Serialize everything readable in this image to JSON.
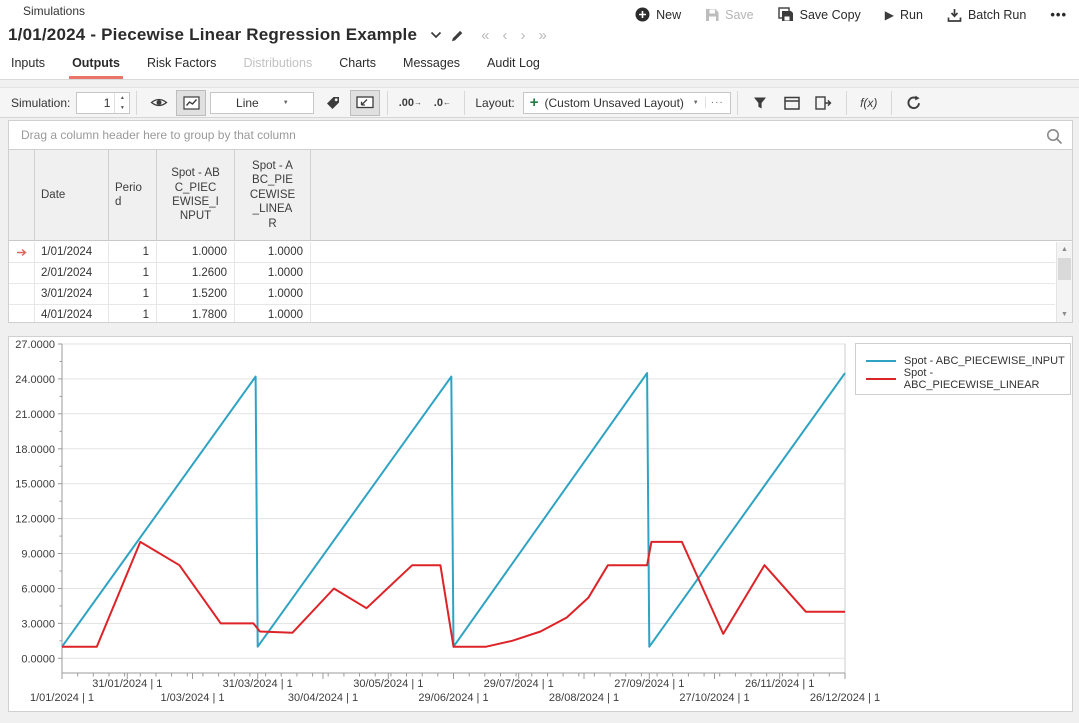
{
  "header": {
    "app_label": "Simulations",
    "title": "1/01/2024 - Piecewise Linear Regression Example",
    "actions": {
      "new": "New",
      "save": "Save",
      "save_copy": "Save Copy",
      "run": "Run",
      "batch_run": "Batch Run"
    },
    "tabs": [
      {
        "label": "Inputs",
        "state": "normal"
      },
      {
        "label": "Outputs",
        "state": "active"
      },
      {
        "label": "Risk Factors",
        "state": "normal"
      },
      {
        "label": "Distributions",
        "state": "disabled"
      },
      {
        "label": "Charts",
        "state": "normal"
      },
      {
        "label": "Messages",
        "state": "normal"
      },
      {
        "label": "Audit Log",
        "state": "normal"
      }
    ]
  },
  "icons": {
    "dropdown_caret": "▼",
    "nav_first": "«",
    "nav_prev": "‹",
    "nav_next": "›",
    "nav_last": "»",
    "overflow": "•••",
    "combo_more": "···",
    "spinner_up": "▲",
    "spinner_down": "▼",
    "run_glyph": "▶",
    "dec_add_arrow": "→",
    "dec_remove_arrow": "←",
    "scroll_up": "▲",
    "scroll_down": "▼"
  },
  "toolbar": {
    "simulation_label": "Simulation:",
    "simulation_value": "1",
    "chart_type_value": "Line",
    "dec_add": ".00",
    "dec_remove": ".0",
    "layout_label": "Layout:",
    "layout_plus": "+",
    "layout_value": "(Custom Unsaved Layout)",
    "fx_label": "f(x)"
  },
  "grid": {
    "group_hint": "Drag a column header here to group by that column",
    "columns": [
      "Date",
      "Period",
      "Spot - ABC_PIECEWISE_INPUT",
      "Spot - ABC_PIECEWISE_LINEAR"
    ],
    "rows": [
      [
        "1/01/2024",
        "1",
        "1.0000",
        "1.0000"
      ],
      [
        "2/01/2024",
        "1",
        "1.2600",
        "1.0000"
      ],
      [
        "3/01/2024",
        "1",
        "1.5200",
        "1.0000"
      ],
      [
        "4/01/2024",
        "1",
        "1.7800",
        "1.0000"
      ]
    ]
  },
  "colors": {
    "tab_accent": "#e8746a",
    "series_input": "#2fa3c3",
    "series_linear": "#dd2328",
    "green_plus": "#1f7a3f",
    "row_indicator": "#e0665c",
    "gridline": "#e3e3e3",
    "axis": "#9b9b9b"
  },
  "chart_data": {
    "type": "line",
    "title": "",
    "xlabel": "",
    "ylabel": "",
    "x_unit": "days since 1/01/2024, labels formatted as date | simulation",
    "y_range": [
      0,
      27
    ],
    "y_tick_step": 3,
    "grid": true,
    "legend_position": "top-right",
    "y_ticks": [
      "0.0000",
      "3.0000",
      "6.0000",
      "9.0000",
      "12.0000",
      "15.0000",
      "18.0000",
      "21.0000",
      "24.0000",
      "27.0000"
    ],
    "x_ticks": [
      {
        "day": 0,
        "label": "1/01/2024 | 1",
        "row": 2
      },
      {
        "day": 30,
        "label": "31/01/2024 | 1",
        "row": 1
      },
      {
        "day": 60,
        "label": "1/03/2024 | 1",
        "row": 2
      },
      {
        "day": 90,
        "label": "31/03/2024 | 1",
        "row": 1
      },
      {
        "day": 120,
        "label": "30/04/2024 | 1",
        "row": 2
      },
      {
        "day": 150,
        "label": "30/05/2024 | 1",
        "row": 1
      },
      {
        "day": 180,
        "label": "29/06/2024 | 1",
        "row": 2
      },
      {
        "day": 210,
        "label": "29/07/2024 | 1",
        "row": 1
      },
      {
        "day": 240,
        "label": "28/08/2024 | 1",
        "row": 2
      },
      {
        "day": 270,
        "label": "27/09/2024 | 1",
        "row": 1
      },
      {
        "day": 300,
        "label": "27/10/2024 | 1",
        "row": 2
      },
      {
        "day": 330,
        "label": "26/11/2024 | 1",
        "row": 1
      },
      {
        "day": 360,
        "label": "26/12/2024 | 1",
        "row": 2
      }
    ],
    "series": [
      {
        "name": "Spot - ABC_PIECEWISE_INPUT",
        "color": "#2fa3c3",
        "shape": "quarterly sawtooth, daily increment 0.26 starting at 1.0",
        "points": [
          [
            0,
            1
          ],
          [
            89,
            24.2
          ],
          [
            90,
            1
          ],
          [
            179,
            24.2
          ],
          [
            180,
            1
          ],
          [
            269,
            24.5
          ],
          [
            270,
            1
          ],
          [
            360,
            24.5
          ]
        ]
      },
      {
        "name": "Spot - ABC_PIECEWISE_LINEAR",
        "color": "#dd2328",
        "shape": "piecewise linear regression output",
        "points": [
          [
            0,
            1
          ],
          [
            16,
            1
          ],
          [
            36,
            10
          ],
          [
            54,
            8
          ],
          [
            73,
            3
          ],
          [
            88,
            3
          ],
          [
            91,
            2.3
          ],
          [
            106,
            2.2
          ],
          [
            125,
            6
          ],
          [
            140,
            4.3
          ],
          [
            161,
            8
          ],
          [
            174,
            8
          ],
          [
            180,
            1
          ],
          [
            195,
            1
          ],
          [
            207,
            1.5
          ],
          [
            220,
            2.3
          ],
          [
            232,
            3.5
          ],
          [
            242,
            5.2
          ],
          [
            251,
            8
          ],
          [
            269,
            8
          ],
          [
            271,
            10
          ],
          [
            285,
            10
          ],
          [
            304,
            2.1
          ],
          [
            323,
            8
          ],
          [
            342,
            4
          ],
          [
            360,
            4
          ]
        ]
      }
    ]
  }
}
